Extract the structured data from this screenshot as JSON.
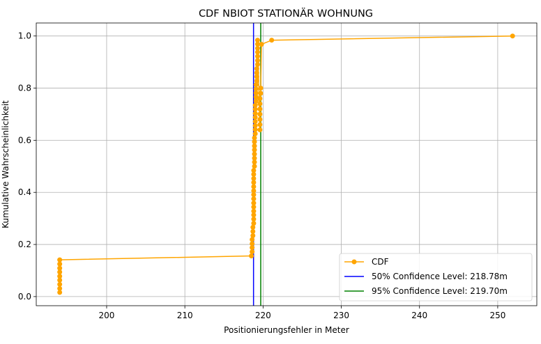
{
  "chart_data": {
    "type": "line",
    "title": "CDF NBIOT STATIONÄR WOHNUNG",
    "xlabel": "Positionierungsfehler in Meter",
    "ylabel": "Kumulative Wahrscheinlichkeit",
    "xlim": [
      191,
      255
    ],
    "ylim": [
      -0.035,
      1.05
    ],
    "xticks": [
      200,
      210,
      220,
      230,
      240,
      250
    ],
    "yticks": [
      0.0,
      0.2,
      0.4,
      0.6,
      0.8,
      1.0
    ],
    "xtick_labels": [
      "200",
      "210",
      "220",
      "230",
      "240",
      "250"
    ],
    "ytick_labels": [
      "0.0",
      "0.2",
      "0.4",
      "0.6",
      "0.8",
      "1.0"
    ],
    "grid": true,
    "legend_position": "lower-right",
    "series": [
      {
        "name": "CDF",
        "color": "#ffa500",
        "marker": "circle",
        "x": [
          194.0,
          194.0,
          194.0,
          194.0,
          194.0,
          194.0,
          194.0,
          194.0,
          194.0,
          218.5,
          218.6,
          218.6,
          218.6,
          218.6,
          218.7,
          218.7,
          218.7,
          218.8,
          218.8,
          218.8,
          218.8,
          218.8,
          218.8,
          218.8,
          218.8,
          218.8,
          218.8,
          218.8,
          218.8,
          218.8,
          218.8,
          218.9,
          218.9,
          218.9,
          218.9,
          218.9,
          218.9,
          218.9,
          218.9,
          219.0,
          219.0,
          219.0,
          219.0,
          219.0,
          219.0,
          219.0,
          219.0,
          219.1,
          219.1,
          219.1,
          219.1,
          219.1,
          219.2,
          219.2,
          219.2,
          219.2,
          219.3,
          219.3,
          219.3,
          219.3,
          219.3,
          219.3,
          219.3,
          219.6,
          219.6,
          219.6,
          219.6,
          219.6,
          219.6,
          219.6,
          219.7,
          219.7,
          219.8,
          221.1,
          251.9
        ],
        "y": [
          0.016,
          0.031,
          0.047,
          0.063,
          0.078,
          0.094,
          0.109,
          0.125,
          0.141,
          0.156,
          0.172,
          0.188,
          0.203,
          0.219,
          0.234,
          0.25,
          0.266,
          0.281,
          0.297,
          0.313,
          0.328,
          0.344,
          0.359,
          0.375,
          0.391,
          0.406,
          0.422,
          0.438,
          0.453,
          0.469,
          0.484,
          0.5,
          0.516,
          0.531,
          0.547,
          0.563,
          0.578,
          0.594,
          0.609,
          0.625,
          0.641,
          0.656,
          0.672,
          0.688,
          0.703,
          0.719,
          0.734,
          0.75,
          0.766,
          0.781,
          0.797,
          0.813,
          0.828,
          0.844,
          0.859,
          0.875,
          0.891,
          0.906,
          0.922,
          0.938,
          0.953,
          0.969,
          0.984,
          0.64,
          0.66,
          0.68,
          0.7,
          0.72,
          0.74,
          0.76,
          0.78,
          0.8,
          0.968,
          0.984,
          1.0
        ]
      }
    ],
    "vlines": [
      {
        "name": "50% Confidence Level: 218.78m",
        "x": 218.78,
        "color": "#0000ff"
      },
      {
        "name": "95% Confidence Level: 219.70m",
        "x": 219.7,
        "color": "#008000"
      }
    ]
  }
}
